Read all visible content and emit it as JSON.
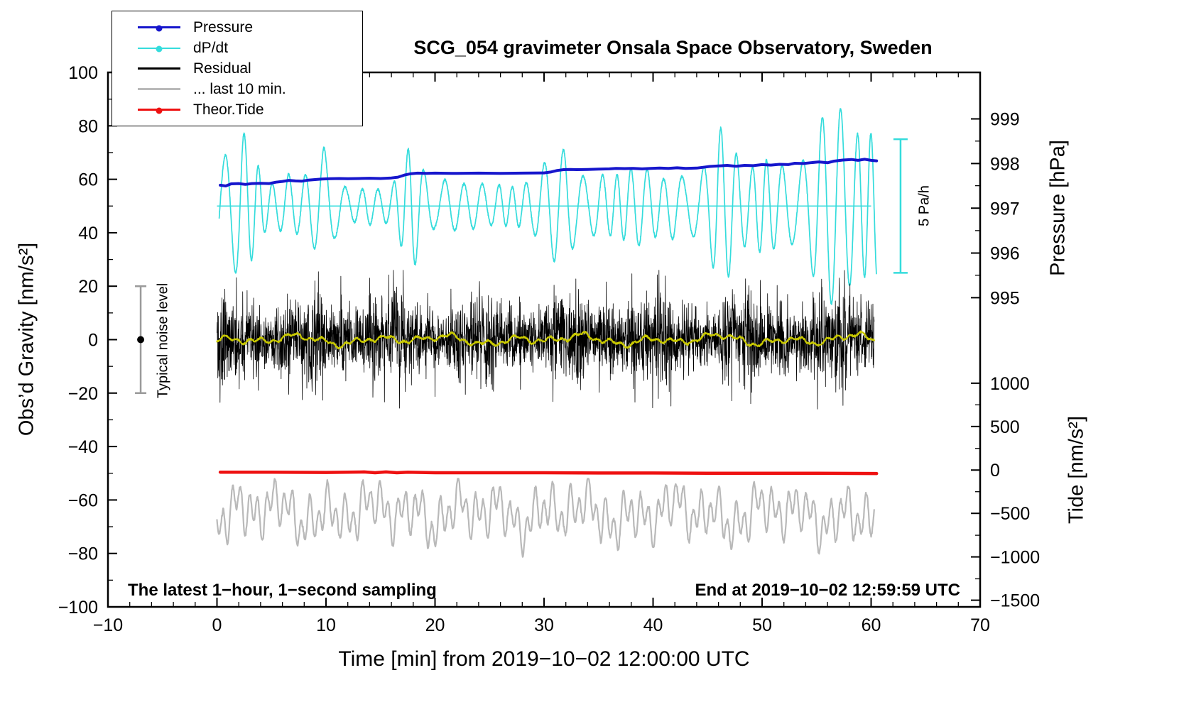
{
  "title": "SCG_054 gravimeter Onsala Space Observatory, Sweden",
  "annotations": {
    "sampling_note": "The latest 1−hour, 1−second sampling",
    "end_time": "End at 2019−10−02 12:59:59 UTC",
    "noise_label": "Typical noise level",
    "dpdt_scale_label": "5 Pa/h"
  },
  "legend": {
    "items": [
      {
        "label": "Pressure",
        "color": "#1616cc",
        "marker": true,
        "width": 3
      },
      {
        "label": "dP/dt",
        "color": "#35dcdc",
        "marker": true,
        "width": 2
      },
      {
        "label": "Residual",
        "color": "#000000",
        "marker": false,
        "width": 3
      },
      {
        "label": "... last 10 min.",
        "color": "#b9b9b9",
        "marker": false,
        "width": 3
      },
      {
        "label": "Theor.Tide",
        "color": "#ee1111",
        "marker": true,
        "width": 3
      }
    ]
  },
  "chart_data": {
    "type": "line",
    "title": "SCG_054 gravimeter Onsala Space Observatory, Sweden",
    "xlabel": "Time [min] from 2019−10−02 12:00:00 UTC",
    "ylabel_left": "Obs’d Gravity [nm/s²]",
    "ylabel_right_pressure": "Pressure [hPa]",
    "ylabel_right_tide": "Tide [nm/s²]",
    "xlim": [
      -10,
      70
    ],
    "ylim_left": [
      -100,
      100
    ],
    "axes": {
      "x": {
        "values": [
          -10,
          0,
          10,
          20,
          30,
          40,
          50,
          60,
          70
        ],
        "labels": [
          "−10",
          "0",
          "10",
          "20",
          "30",
          "40",
          "50",
          "60",
          "70"
        ],
        "minor_step": 2
      },
      "left": {
        "values": [
          -100,
          -80,
          -60,
          -40,
          -20,
          0,
          20,
          40,
          60,
          80,
          100
        ],
        "labels": [
          "−100",
          "−80",
          "−60",
          "−40",
          "−20",
          "0",
          "20",
          "40",
          "60",
          "80",
          "100"
        ],
        "minor_step": 10
      },
      "right_pressure": {
        "ticks": [
          {
            "label": "999",
            "u": 82.6
          },
          {
            "label": "998",
            "u": 65.9
          },
          {
            "label": "997",
            "u": 49.2
          },
          {
            "label": "996",
            "u": 32.4
          },
          {
            "label": "995",
            "u": 15.7
          }
        ],
        "minor_u": [
          24.1,
          40.8,
          57.6,
          74.3
        ]
      },
      "right_tide": {
        "ticks": [
          {
            "label": "1000",
            "u": -16.3
          },
          {
            "label": "500",
            "u": -32.5
          },
          {
            "label": "0",
            "u": -48.8
          },
          {
            "label": "−500",
            "u": -65.0
          },
          {
            "label": "−1000",
            "u": -81.3
          },
          {
            "label": "−1500",
            "u": -97.5
          }
        ],
        "minor_u": [
          -24.4,
          -40.7,
          -56.9,
          -73.2,
          -89.5
        ]
      }
    },
    "reference_line": {
      "u": 50,
      "x0": 0,
      "x1": 60,
      "color": "#35dcdc"
    },
    "scalebars": [
      {
        "name": "typical-noise",
        "x": -7,
        "from": 20,
        "to": -20,
        "dot": 0,
        "color": "#9a9a9a",
        "dot_color": "#000000",
        "cap": 16
      },
      {
        "name": "dpdt-scale",
        "x": 62.7,
        "from": 75,
        "to": 25,
        "color": "#35dcdc",
        "cap": 20
      }
    ],
    "series": [
      {
        "name": "dP/dt",
        "color": "#35dcdc",
        "width": 1.7,
        "type": "oscillator",
        "baseline": 50,
        "period": 1.6,
        "x_range": [
          0.2,
          60.5
        ],
        "envelope": [
          [
            0,
            16
          ],
          [
            1,
            20
          ],
          [
            2.3,
            29
          ],
          [
            3.2,
            20
          ],
          [
            4.5,
            9
          ],
          [
            5.5,
            8
          ],
          [
            6.5,
            12
          ],
          [
            7.5,
            10
          ],
          [
            8.5,
            13
          ],
          [
            9.8,
            22
          ],
          [
            10.8,
            12
          ],
          [
            12,
            6
          ],
          [
            13,
            6
          ],
          [
            14,
            7
          ],
          [
            15,
            6
          ],
          [
            16,
            7
          ],
          [
            17,
            16
          ],
          [
            17.9,
            25
          ],
          [
            19,
            13
          ],
          [
            20,
            8
          ],
          [
            21,
            10
          ],
          [
            22,
            9
          ],
          [
            23,
            8
          ],
          [
            24,
            9
          ],
          [
            25,
            7
          ],
          [
            26,
            8
          ],
          [
            27,
            7
          ],
          [
            28,
            8
          ],
          [
            29,
            10
          ],
          [
            30,
            16
          ],
          [
            31,
            21
          ],
          [
            32,
            21
          ],
          [
            33,
            13
          ],
          [
            34,
            10
          ],
          [
            35,
            12
          ],
          [
            36,
            11
          ],
          [
            37,
            12
          ],
          [
            38,
            14
          ],
          [
            39,
            15
          ],
          [
            40,
            12
          ],
          [
            41,
            10
          ],
          [
            42,
            13
          ],
          [
            43,
            10
          ],
          [
            44,
            12
          ],
          [
            45,
            16
          ],
          [
            46,
            30
          ],
          [
            47,
            26
          ],
          [
            48,
            16
          ],
          [
            49,
            14
          ],
          [
            50,
            18
          ],
          [
            51,
            16
          ],
          [
            52,
            15
          ],
          [
            53,
            14
          ],
          [
            54,
            18
          ],
          [
            55,
            30
          ],
          [
            56,
            36
          ],
          [
            57,
            38
          ],
          [
            58,
            30
          ],
          [
            59,
            26
          ],
          [
            60.5,
            28
          ]
        ]
      },
      {
        "name": "Pressure",
        "color": "#1616cc",
        "width": 4,
        "type": "keypoints",
        "points": [
          [
            0.3,
            57.8
          ],
          [
            0.8,
            57.5
          ],
          [
            1.3,
            58.3
          ],
          [
            2,
            58.4
          ],
          [
            2.6,
            58.1
          ],
          [
            3.2,
            58.4
          ],
          [
            4,
            58.5
          ],
          [
            4.8,
            58.4
          ],
          [
            5.4,
            58.9
          ],
          [
            6,
            59.2
          ],
          [
            6.6,
            59.6
          ],
          [
            7.2,
            59.4
          ],
          [
            7.8,
            59.3
          ],
          [
            8.4,
            59.7
          ],
          [
            9,
            59.9
          ],
          [
            9.6,
            60.1
          ],
          [
            10.4,
            60.2
          ],
          [
            11.2,
            60.3
          ],
          [
            12,
            60.2
          ],
          [
            13,
            60.3
          ],
          [
            14,
            60.4
          ],
          [
            15,
            60.3
          ],
          [
            16,
            60.5
          ],
          [
            16.6,
            60.8
          ],
          [
            17.2,
            61.6
          ],
          [
            17.8,
            62.1
          ],
          [
            18.4,
            62.3
          ],
          [
            19.2,
            62.2
          ],
          [
            20,
            62.3
          ],
          [
            22,
            62.2
          ],
          [
            24,
            62.3
          ],
          [
            26,
            62.2
          ],
          [
            28,
            62.3
          ],
          [
            30,
            62.4
          ],
          [
            30.6,
            62.7
          ],
          [
            31.2,
            63.3
          ],
          [
            31.8,
            63.6
          ],
          [
            32.4,
            63.7
          ],
          [
            33,
            63.6
          ],
          [
            34,
            63.7
          ],
          [
            35,
            63.8
          ],
          [
            36,
            63.9
          ],
          [
            36.6,
            64.1
          ],
          [
            37.4,
            64
          ],
          [
            38.2,
            64.1
          ],
          [
            39,
            63.9
          ],
          [
            39.8,
            64.1
          ],
          [
            40.6,
            64.2
          ],
          [
            41.4,
            64.1
          ],
          [
            42.2,
            64.3
          ],
          [
            43,
            64.1
          ],
          [
            44,
            64.2
          ],
          [
            44.6,
            64.5
          ],
          [
            45.2,
            64.8
          ],
          [
            46,
            65
          ],
          [
            46.8,
            65.2
          ],
          [
            47.6,
            64.9
          ],
          [
            48.4,
            65.2
          ],
          [
            49.2,
            65.1
          ],
          [
            50,
            65.5
          ],
          [
            50.8,
            65.3
          ],
          [
            51.6,
            65.6
          ],
          [
            52.4,
            65.5
          ],
          [
            53,
            66
          ],
          [
            53.8,
            65.9
          ],
          [
            54.4,
            66.2
          ],
          [
            55.2,
            66.5
          ],
          [
            56,
            66.2
          ],
          [
            56.6,
            66.8
          ],
          [
            57.4,
            67.2
          ],
          [
            58.2,
            67.4
          ],
          [
            58.8,
            67.1
          ],
          [
            59.4,
            67.5
          ],
          [
            60,
            67.1
          ],
          [
            60.5,
            66.9
          ]
        ]
      },
      {
        "name": "Residual",
        "color": "#000000",
        "width": 0.8,
        "type": "noise",
        "center": 0,
        "sigma": 7.5,
        "clip": 26,
        "spike_prob": 0.006,
        "spike_gain": 2.0,
        "x_range": [
          0,
          60.3
        ]
      },
      {
        "name": "Residual smooth",
        "color": "#c9c900",
        "width": 2.2,
        "type": "wander",
        "center": 0,
        "components": [
          [
            1.1,
            0.6
          ],
          [
            2.9,
            0.9
          ],
          [
            6.5,
            1.0
          ],
          [
            13,
            0.8
          ]
        ],
        "noise": 0.6,
        "clip": [
          -4,
          4
        ],
        "x_range": [
          0,
          60.3
        ]
      },
      {
        "name": "... last 10 min.",
        "color": "#b9b9b9",
        "width": 2.2,
        "type": "wander",
        "center": -65,
        "components": [
          [
            0.8,
            6
          ],
          [
            1.7,
            4.5
          ],
          [
            3.9,
            3.5
          ],
          [
            9.5,
            2.5
          ]
        ],
        "noise": 1.5,
        "clip": [
          -86,
          -52
        ],
        "x_range": [
          0,
          60.3
        ]
      },
      {
        "name": "Theor.Tide",
        "color": "#ee1111",
        "width": 4.5,
        "type": "keypoints",
        "points": [
          [
            0.3,
            -49.6
          ],
          [
            5,
            -49.6
          ],
          [
            10,
            -49.7
          ],
          [
            13.5,
            -49.5
          ],
          [
            14.5,
            -49.8
          ],
          [
            15.5,
            -49.5
          ],
          [
            16.5,
            -49.8
          ],
          [
            17.5,
            -49.6
          ],
          [
            20,
            -49.8
          ],
          [
            25,
            -49.8
          ],
          [
            30,
            -49.8
          ],
          [
            35,
            -49.9
          ],
          [
            40,
            -49.9
          ],
          [
            45,
            -50
          ],
          [
            50,
            -50
          ],
          [
            55,
            -50
          ],
          [
            60.5,
            -50.1
          ]
        ]
      }
    ]
  }
}
